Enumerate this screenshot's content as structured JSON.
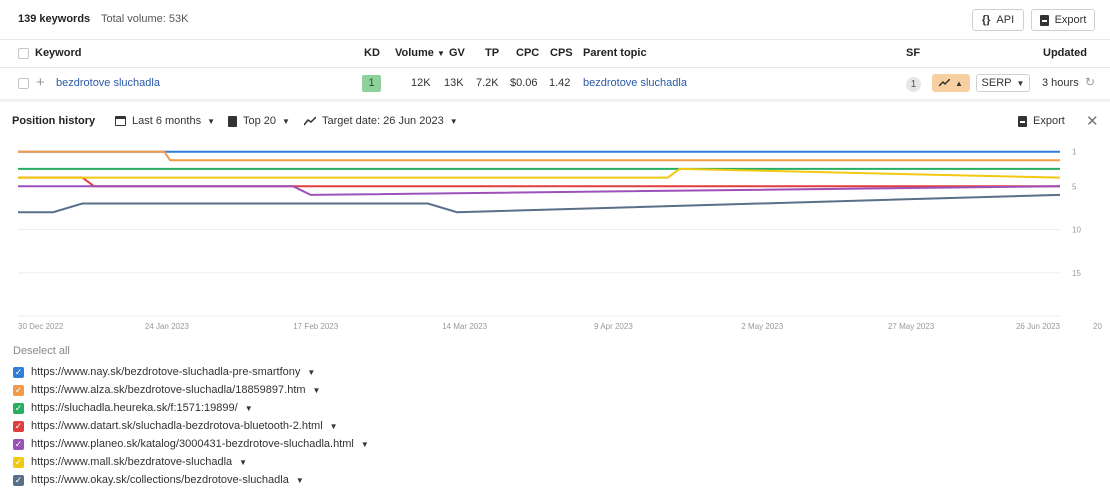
{
  "topbar": {
    "keyword_count": "139 keywords",
    "total_volume": "Total volume: 53K",
    "api_label": "API",
    "export_label": "Export"
  },
  "table": {
    "headers": {
      "keyword": "Keyword",
      "kd": "KD",
      "volume": "Volume",
      "gv": "GV",
      "tp": "TP",
      "cpc": "CPC",
      "cps": "CPS",
      "parent_topic": "Parent topic",
      "sf": "SF",
      "updated": "Updated"
    },
    "row": {
      "keyword": "bezdrotove sluchadla",
      "kd": "1",
      "volume": "12K",
      "gv": "13K",
      "tp": "7.2K",
      "cpc": "$0.06",
      "cps": "1.42",
      "parent_topic": "bezdrotove sluchadla",
      "sf_count": "1",
      "serp_label": "SERP",
      "updated": "3 hours"
    }
  },
  "position_history": {
    "title": "Position history",
    "range_label": "Last 6 months",
    "top_label": "Top 20",
    "target_date_label": "Target date: 26 Jun 2023",
    "export_label": "Export",
    "deselect_label": "Deselect all"
  },
  "chart_data": {
    "type": "line",
    "title": "",
    "x_ticks": [
      "30 Dec 2022",
      "24 Jan 2023",
      "17 Feb 2023",
      "14 Mar 2023",
      "9 Apr 2023",
      "2 May 2023",
      "27 May 2023",
      "26 Jun 2023"
    ],
    "y_ticks": [
      "1",
      "5",
      "10",
      "15",
      "20"
    ],
    "ylim": [
      0,
      20
    ],
    "y_inverted": true,
    "x_range": [
      "2022-12-30",
      "2023-06-26"
    ],
    "grid": true,
    "series": [
      {
        "name": "https://www.nay.sk/bezdrotove-sluchadla-pre-smartfony",
        "color": "#2f7ed8",
        "points": [
          [
            "2022-12-30",
            1
          ],
          [
            "2023-06-26",
            1
          ]
        ]
      },
      {
        "name": "https://www.alza.sk/bezdrotove-sluchadla/18859897.htm",
        "color": "#f2994a",
        "points": [
          [
            "2022-12-30",
            1
          ],
          [
            "2023-01-24",
            1
          ],
          [
            "2023-01-25",
            2
          ],
          [
            "2023-06-26",
            2
          ]
        ]
      },
      {
        "name": "https://sluchadla.heureka.sk/f:1571:19899/",
        "color": "#27ae60",
        "points": [
          [
            "2022-12-30",
            3
          ],
          [
            "2023-06-26",
            3
          ]
        ]
      },
      {
        "name": "https://www.datart.sk/sluchadla-bezdrotova-bluetooth-2.html",
        "color": "#e03e3e",
        "points": [
          [
            "2022-12-30",
            4
          ],
          [
            "2023-01-10",
            4
          ],
          [
            "2023-01-12",
            5
          ],
          [
            "2023-06-26",
            5
          ]
        ]
      },
      {
        "name": "https://www.planeo.sk/katalog/3000431-bezdrotove-sluchadla.html",
        "color": "#9b51b8",
        "points": [
          [
            "2022-12-30",
            5
          ],
          [
            "2023-02-15",
            5
          ],
          [
            "2023-02-18",
            6
          ],
          [
            "2023-06-26",
            5
          ]
        ]
      },
      {
        "name": "https://www.mall.sk/bezdratove-sluchadla",
        "color": "#f2c811",
        "points": [
          [
            "2022-12-30",
            4
          ],
          [
            "2023-04-20",
            4
          ],
          [
            "2023-04-22",
            3
          ],
          [
            "2023-06-26",
            4
          ]
        ]
      },
      {
        "name": "https://www.okay.sk/collections/bezdrotove-sluchadla",
        "color": "#5a6f8a",
        "points": [
          [
            "2022-12-30",
            8
          ],
          [
            "2023-01-05",
            8
          ],
          [
            "2023-01-10",
            7
          ],
          [
            "2023-03-10",
            7
          ],
          [
            "2023-03-15",
            8
          ],
          [
            "2023-06-26",
            6
          ]
        ]
      }
    ]
  },
  "legend_items": [
    {
      "label": "https://www.nay.sk/bezdrotove-sluchadla-pre-smartfony",
      "color": "#2f7ed8"
    },
    {
      "label": "https://www.alza.sk/bezdrotove-sluchadla/18859897.htm",
      "color": "#f2994a"
    },
    {
      "label": "https://sluchadla.heureka.sk/f:1571:19899/",
      "color": "#27ae60"
    },
    {
      "label": "https://www.datart.sk/sluchadla-bezdrotova-bluetooth-2.html",
      "color": "#e03e3e"
    },
    {
      "label": "https://www.planeo.sk/katalog/3000431-bezdrotove-sluchadla.html",
      "color": "#9b51b8"
    },
    {
      "label": "https://www.mall.sk/bezdratove-sluchadla",
      "color": "#f2c811"
    },
    {
      "label": "https://www.okay.sk/collections/bezdrotove-sluchadla",
      "color": "#5a6f8a"
    }
  ]
}
